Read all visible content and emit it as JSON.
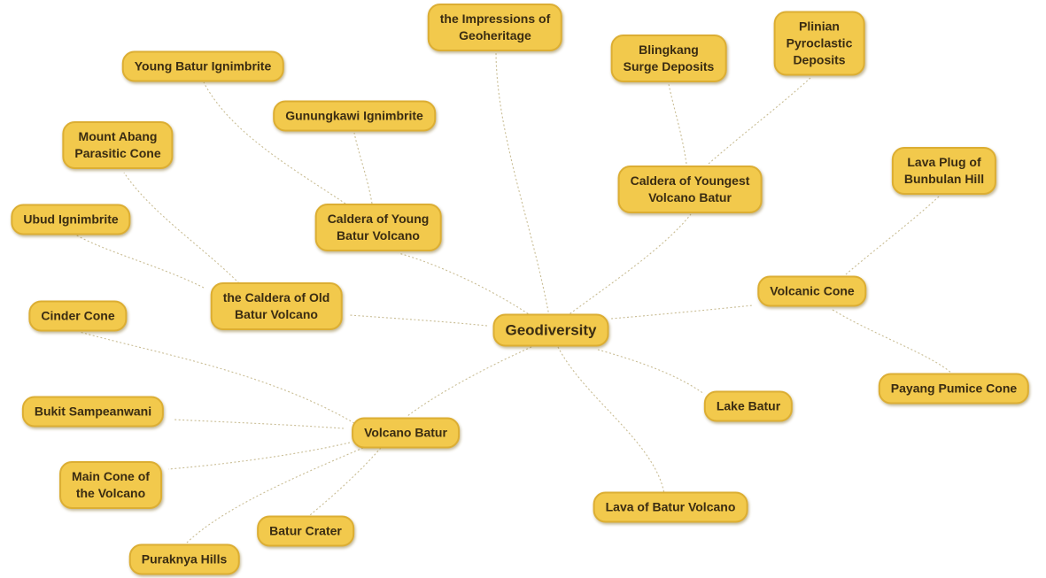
{
  "root": "Geodiversity",
  "nodes": {
    "impressions": "the Impressions of\nGeoheritage",
    "young_batur_ign": "Young Batur Ignimbrite",
    "gunungkawi": "Gunungkawi Ignimbrite",
    "blingkang": "Blingkang\nSurge Deposits",
    "plinian": "Plinian\nPyroclastic\nDeposits",
    "mount_abang": "Mount Abang\nParasitic Cone",
    "lava_plug": "Lava Plug of\nBunbulan Hill",
    "caldera_youngest": "Caldera of Youngest\nVolcano Batur",
    "ubud": "Ubud Ignimbrite",
    "caldera_young": "Caldera of Young\nBatur Volcano",
    "volcanic_cone": "Volcanic Cone",
    "caldera_old": "the Caldera of Old\nBatur Volcano",
    "cinder": "Cinder Cone",
    "payang": "Payang Pumice Cone",
    "lake_batur": "Lake Batur",
    "bukit": "Bukit Sampeanwani",
    "volcano_batur": "Volcano Batur",
    "main_cone": "Main Cone of\nthe Volcano",
    "lava_batur": "Lava of Batur Volcano",
    "batur_crater": "Batur Crater",
    "puraknya": "Puraknya Hills"
  },
  "colors": {
    "node_fill": "#f2c94c",
    "node_border": "#dcae33",
    "node_text": "#3a2c12",
    "edge": "#c9bd94"
  }
}
